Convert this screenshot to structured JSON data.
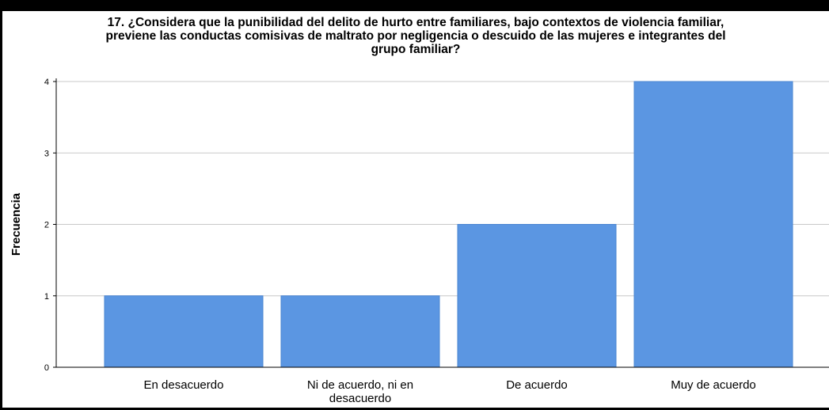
{
  "chart_data": {
    "type": "bar",
    "title_lines": [
      "17. ¿Considera que la punibilidad del delito de hurto entre familiares, bajo contextos de violencia familiar,",
      "previene las conductas comisivas de maltrato por negligencia o descuido de las mujeres e integrantes del",
      "grupo familiar?"
    ],
    "ylabel": "Frecuencia",
    "xlabel": "",
    "ylim": [
      0,
      4
    ],
    "yticks": [
      "0",
      "1",
      "2",
      "3",
      "4"
    ],
    "grid": true,
    "categories": [
      [
        "En desacuerdo"
      ],
      [
        "Ni de acuerdo, ni en",
        "desacuerdo"
      ],
      [
        "De acuerdo"
      ],
      [
        "Muy de acuerdo"
      ]
    ],
    "values": [
      1,
      1,
      2,
      4
    ],
    "bar_color": "#5b96e2"
  }
}
